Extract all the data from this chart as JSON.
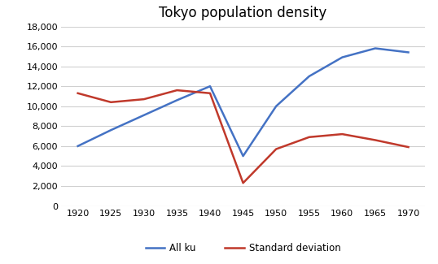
{
  "title": "Tokyo population density",
  "years": [
    1920,
    1925,
    1930,
    1935,
    1940,
    1945,
    1950,
    1955,
    1960,
    1965,
    1970
  ],
  "all_ku": [
    6000,
    7600,
    9100,
    10600,
    12000,
    5000,
    10000,
    13000,
    14900,
    15800,
    15400
  ],
  "std_dev": [
    11300,
    10400,
    10700,
    11600,
    11300,
    2300,
    5700,
    6900,
    7200,
    6600,
    5900
  ],
  "all_ku_color": "#4472c4",
  "std_dev_color": "#c0392b",
  "ylim": [
    0,
    18000
  ],
  "yticks": [
    0,
    2000,
    4000,
    6000,
    8000,
    10000,
    12000,
    14000,
    16000,
    18000
  ],
  "xticks": [
    1920,
    1925,
    1930,
    1935,
    1940,
    1945,
    1950,
    1955,
    1960,
    1965,
    1970
  ],
  "legend_all_ku": "All ku",
  "legend_std_dev": "Standard deviation",
  "background_color": "#ffffff",
  "grid_color": "#d0d0d0",
  "title_fontsize": 12,
  "tick_fontsize": 8,
  "legend_fontsize": 8.5,
  "linewidth": 1.8
}
